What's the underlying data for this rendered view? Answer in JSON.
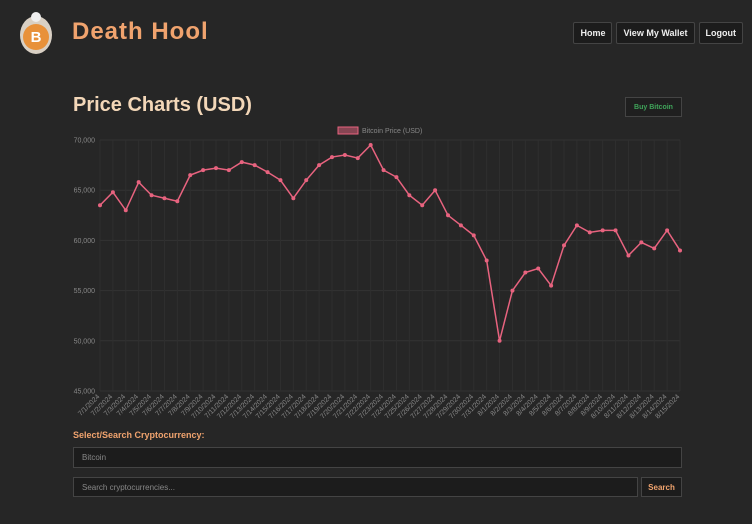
{
  "header": {
    "brand": "Death Hool",
    "nav": [
      "Home",
      "View My Wallet",
      "Logout"
    ]
  },
  "page": {
    "heading": "Price Charts (USD)",
    "buy_button": "Buy Bitcoin",
    "select_label": "Select/Search Cryptocurrency:",
    "selected": "Bitcoin",
    "search_placeholder": "Search cryptocurrencies...",
    "search_button": "Search"
  },
  "chart_data": {
    "type": "line",
    "categories": [
      "7/1/2024",
      "7/2/2024",
      "7/3/2024",
      "7/4/2024",
      "7/5/2024",
      "7/6/2024",
      "7/7/2024",
      "7/8/2024",
      "7/9/2024",
      "7/10/2024",
      "7/11/2024",
      "7/12/2024",
      "7/13/2024",
      "7/14/2024",
      "7/15/2024",
      "7/16/2024",
      "7/17/2024",
      "7/18/2024",
      "7/19/2024",
      "7/20/2024",
      "7/21/2024",
      "7/22/2024",
      "7/23/2024",
      "7/24/2024",
      "7/25/2024",
      "7/26/2024",
      "7/27/2024",
      "7/28/2024",
      "7/29/2024",
      "7/30/2024",
      "7/31/2024",
      "8/1/2024",
      "8/2/2024",
      "8/3/2024",
      "8/4/2024",
      "8/5/2024",
      "8/6/2024",
      "8/7/2024",
      "8/8/2024",
      "8/9/2024",
      "8/10/2024",
      "8/11/2024",
      "8/12/2024",
      "8/13/2024",
      "8/14/2024",
      "8/15/2024"
    ],
    "series": [
      {
        "name": "Bitcoin Price (USD)",
        "color": "#e8637f",
        "values": [
          63500,
          64800,
          63000,
          65800,
          64500,
          64200,
          63900,
          66500,
          67000,
          67200,
          67000,
          67800,
          67500,
          66800,
          66000,
          64200,
          66000,
          67500,
          68300,
          68500,
          68200,
          69500,
          67000,
          66300,
          64500,
          63500,
          65000,
          62500,
          61500,
          60500,
          58000,
          50000,
          55000,
          56800,
          57200,
          55500,
          59500,
          61500,
          60800,
          61000,
          61000,
          58500,
          59800,
          59200,
          61000,
          59000
        ]
      }
    ],
    "ylim": [
      45000,
      70000
    ],
    "yticks": [
      {
        "value": 45000,
        "label": "45,000"
      },
      {
        "value": 50000,
        "label": "50,000"
      },
      {
        "value": 55000,
        "label": "55,000"
      },
      {
        "value": 60000,
        "label": "60,000"
      },
      {
        "value": 65000,
        "label": "65,000"
      },
      {
        "value": 70000,
        "label": "70,000"
      }
    ],
    "grid": true
  }
}
